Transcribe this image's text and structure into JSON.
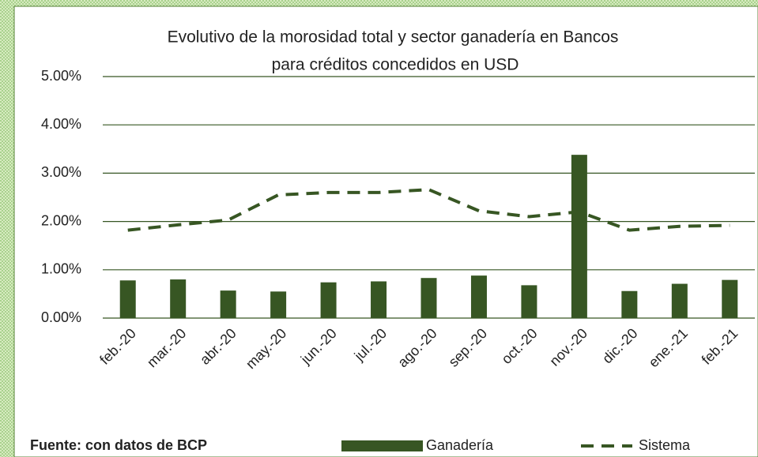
{
  "chart_data": {
    "type": "bar_line",
    "title": [
      "Evolutivo de la morosidad total y sector ganadería en Bancos",
      "para créditos concedidos en USD"
    ],
    "source": "Fuente: con datos de BCP",
    "categories": [
      "feb.-20",
      "mar.-20",
      "abr.-20",
      "may.-20",
      "jun.-20",
      "jul.-20",
      "ago.-20",
      "sep.-20",
      "oct.-20",
      "nov.-20",
      "dic.-20",
      "ene.-21",
      "feb.-21"
    ],
    "series": [
      {
        "name": "Ganadería",
        "type": "bar",
        "color": "#375623",
        "values": [
          0.78,
          0.8,
          0.57,
          0.55,
          0.74,
          0.76,
          0.83,
          0.88,
          0.68,
          3.38,
          0.56,
          0.71,
          0.79
        ]
      },
      {
        "name": "Sistema",
        "type": "line",
        "dashed": true,
        "color": "#375623",
        "values": [
          1.82,
          1.93,
          2.03,
          2.55,
          2.6,
          2.6,
          2.66,
          2.22,
          2.1,
          2.2,
          1.82,
          1.9,
          1.92
        ]
      }
    ],
    "ylim": [
      0,
      5
    ],
    "yticks": [
      {
        "value": 0,
        "label": "0.00%"
      },
      {
        "value": 1,
        "label": "1.00%"
      },
      {
        "value": 2,
        "label": "2.00%"
      },
      {
        "value": 3,
        "label": "3.00%"
      },
      {
        "value": 4,
        "label": "4.00%"
      },
      {
        "value": 5,
        "label": "5.00%"
      }
    ],
    "grid": true
  }
}
